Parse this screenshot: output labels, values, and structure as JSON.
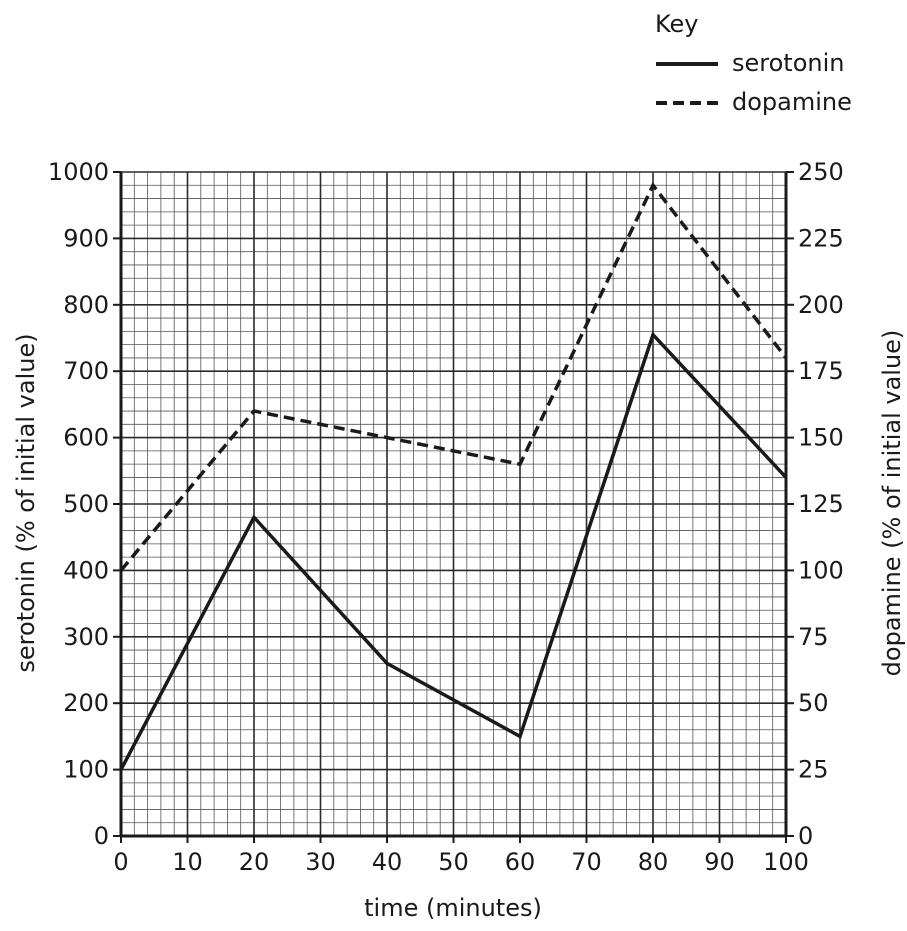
{
  "chart_data": {
    "type": "line",
    "title": "",
    "xlabel": "time (minutes)",
    "ylabel_left": "serotonin (% of initial value)",
    "ylabel_right": "dopamine (% of initial value)",
    "x_ticks": [
      0,
      10,
      20,
      30,
      40,
      50,
      60,
      70,
      80,
      90,
      100
    ],
    "y_left_ticks": [
      0,
      100,
      200,
      300,
      400,
      500,
      600,
      700,
      800,
      900,
      1000
    ],
    "y_right_ticks": [
      0,
      25,
      50,
      75,
      100,
      125,
      150,
      175,
      200,
      225,
      250
    ],
    "xlim": [
      0,
      100
    ],
    "ylim_left": [
      0,
      1000
    ],
    "ylim_right": [
      0,
      250
    ],
    "grid": true,
    "legend": {
      "title": "Key",
      "placement": "top-right",
      "entries": [
        {
          "label": "serotonin",
          "style": "solid"
        },
        {
          "label": "dopamine",
          "style": "dashed"
        }
      ]
    },
    "series": [
      {
        "name": "serotonin",
        "axis": "left",
        "style": "solid",
        "x": [
          0,
          20,
          40,
          60,
          80,
          100
        ],
        "y": [
          100,
          480,
          260,
          150,
          755,
          540
        ]
      },
      {
        "name": "dopamine",
        "axis": "right",
        "style": "dashed",
        "x": [
          0,
          20,
          40,
          60,
          80,
          100
        ],
        "y": [
          100,
          160,
          150,
          140,
          245,
          180
        ]
      }
    ]
  }
}
